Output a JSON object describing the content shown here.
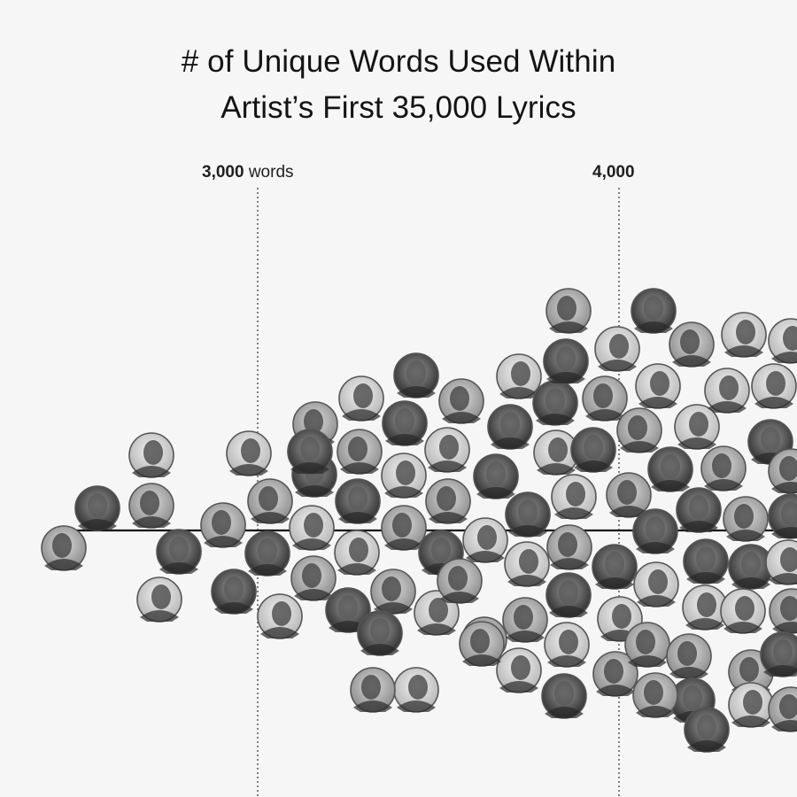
{
  "title_line1": "# of Unique Words Used Within",
  "title_line2": "Artist’s First 35,000 Lyrics",
  "chart_data": {
    "type": "scatter",
    "title": "# of Unique Words Used Within Artist’s First 35,000 Lyrics",
    "x_axis_unit": "unique words",
    "gridlines": [
      {
        "value": 3000,
        "bold": "3,000",
        "suffix": " words"
      },
      {
        "value": 4000,
        "bold": "4,000",
        "suffix": ""
      }
    ],
    "artist_count_visible": 118,
    "colors": {
      "background": "#f6f6f6",
      "axis": "#111111",
      "portrait_ring": "#555555"
    }
  }
}
